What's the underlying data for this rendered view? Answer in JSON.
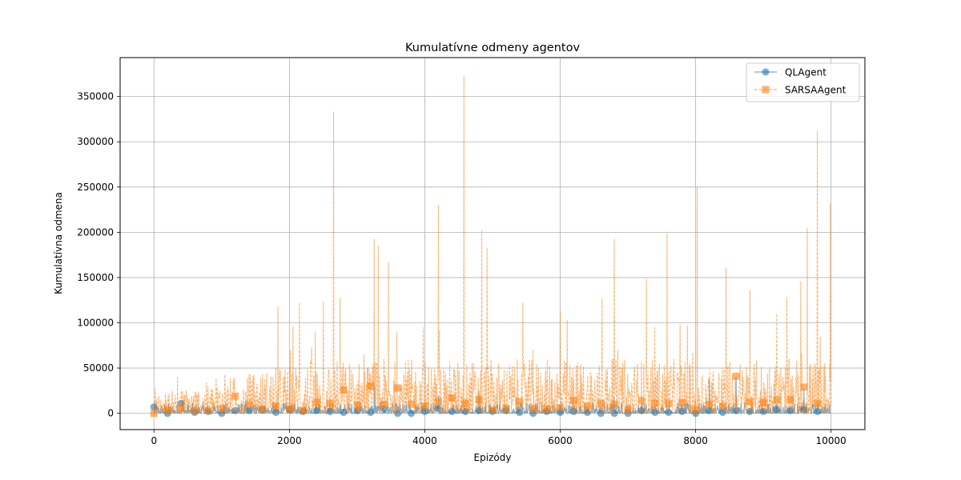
{
  "chart_data": {
    "type": "line",
    "title": "Kumulatívne odmeny agentov",
    "xlabel": "Epizódy",
    "ylabel": "Kumulatívna odmena",
    "xlim": [
      -500,
      10500
    ],
    "ylim": [
      -18000,
      393000
    ],
    "xticks": [
      0,
      2000,
      4000,
      6000,
      8000,
      10000
    ],
    "xtick_labels": [
      "0",
      "2000",
      "4000",
      "6000",
      "8000",
      "10000"
    ],
    "yticks": [
      0,
      50000,
      100000,
      150000,
      200000,
      250000,
      300000,
      350000
    ],
    "ytick_labels": [
      "0",
      "50000",
      "100000",
      "150000",
      "200000",
      "250000",
      "300000",
      "350000"
    ],
    "grid": true,
    "legend_position": "top-right",
    "episodes": 10000,
    "marker_every": 200,
    "series": [
      {
        "name": "QLAgent",
        "color": "#1f77b4",
        "linestyle": "solid",
        "marker": "circle",
        "alpha": 0.6,
        "marker_x": [
          0,
          200,
          400,
          600,
          800,
          1000,
          1200,
          1400,
          1600,
          1800,
          2000,
          2200,
          2400,
          2600,
          2800,
          3000,
          3200,
          3400,
          3600,
          3800,
          4000,
          4200,
          4400,
          4600,
          4800,
          5000,
          5200,
          5400,
          5600,
          5800,
          6000,
          6200,
          6400,
          6600,
          6800,
          7000,
          7200,
          7400,
          7600,
          7800,
          8000,
          8200,
          8400,
          8600,
          8800,
          9000,
          9200,
          9400,
          9600,
          9800
        ],
        "marker_y": [
          7000,
          0,
          11000,
          1000,
          2000,
          0,
          3000,
          3000,
          4000,
          1000,
          4000,
          2000,
          3000,
          2000,
          1000,
          3000,
          1000,
          5000,
          0,
          0,
          2000,
          5000,
          2000,
          2000,
          3000,
          2000,
          3000,
          1000,
          0,
          2000,
          1000,
          2000,
          1000,
          0,
          0,
          0,
          3000,
          1000,
          1000,
          2000,
          0,
          3000,
          1000,
          3000,
          2000,
          2000,
          4000,
          3000,
          4000,
          2000
        ],
        "spike_x": [
          420,
          3260,
          4200,
          4800,
          6800,
          8200,
          8600,
          9600
        ],
        "spike_y": [
          14000,
          30000,
          20000,
          25000,
          18000,
          38000,
          40000,
          28000
        ],
        "band_max": 12000
      },
      {
        "name": "SARSAAgent",
        "color": "#ff7f0e",
        "linestyle": "dashed",
        "marker": "square",
        "alpha": 0.6,
        "marker_x": [
          0,
          200,
          400,
          600,
          800,
          1000,
          1200,
          1400,
          1600,
          1800,
          2000,
          2200,
          2400,
          2600,
          2800,
          3000,
          3200,
          3400,
          3600,
          3800,
          4000,
          4200,
          4400,
          4600,
          4800,
          5000,
          5200,
          5400,
          5600,
          5800,
          6000,
          6200,
          6400,
          6600,
          6800,
          7000,
          7200,
          7400,
          7600,
          7800,
          8000,
          8200,
          8400,
          8600,
          8800,
          9000,
          9200,
          9400,
          9600,
          9800
        ],
        "marker_y": [
          0,
          4000,
          5000,
          3000,
          3000,
          5000,
          19000,
          10000,
          5000,
          8000,
          5000,
          3000,
          12000,
          11000,
          26000,
          9000,
          30000,
          10000,
          28000,
          10000,
          8000,
          13000,
          17000,
          11000,
          15000,
          4000,
          5000,
          13000,
          5000,
          5000,
          6000,
          14000,
          8000,
          11000,
          10000,
          4000,
          14000,
          11000,
          11000,
          12000,
          4000,
          10000,
          8000,
          41000,
          13000,
          12000,
          15000,
          15000,
          29000,
          11000
        ],
        "spike_x": [
          20,
          350,
          1050,
          1830,
          2150,
          2380,
          2500,
          2650,
          2750,
          3100,
          3250,
          3310,
          3460,
          3980,
          4200,
          4580,
          4840,
          4920,
          5450,
          5600,
          6000,
          6100,
          6620,
          6800,
          6850,
          7270,
          7400,
          7580,
          7770,
          7880,
          8020,
          8450,
          8800,
          9200,
          9350,
          9550,
          9650,
          9800,
          9990
        ],
        "spike_y": [
          27000,
          40000,
          43000,
          118000,
          122000,
          90000,
          124000,
          333000,
          128000,
          65000,
          193000,
          185000,
          167000,
          95000,
          230000,
          373000,
          202000,
          183000,
          122000,
          70000,
          113000,
          103000,
          127000,
          193000,
          70000,
          148000,
          95000,
          199000,
          98000,
          97000,
          250000,
          161000,
          136000,
          110000,
          128000,
          146000,
          205000,
          312000,
          232000
        ],
        "band_max": 60000
      }
    ]
  }
}
